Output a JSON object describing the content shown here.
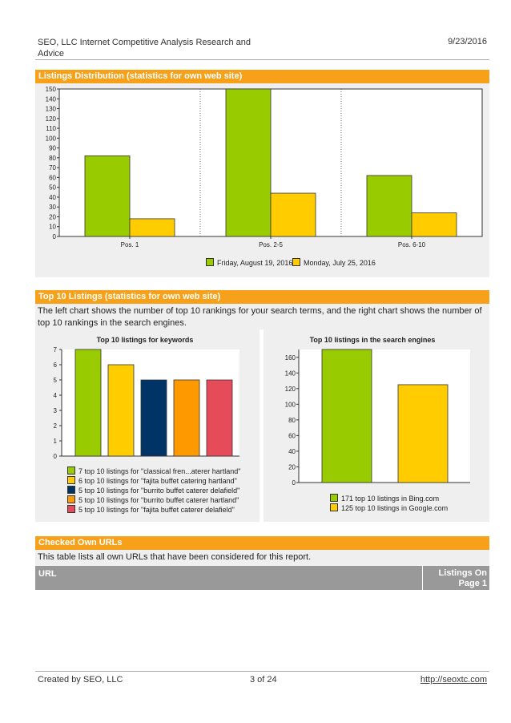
{
  "header": {
    "title": "SEO, LLC Internet Competitive Analysis Research and Advice",
    "date": "9/23/2016"
  },
  "section1": {
    "title": "Listings Distribution (statistics for own web site)"
  },
  "section2": {
    "title": "Top 10 Listings (statistics for own web site)",
    "description": "The left chart shows the number of top 10 rankings for your search terms, and the right chart shows the number of top 10 rankings in the search engines."
  },
  "section3": {
    "title": "Checked Own URLs",
    "description": "This table lists all own URLs that have been considered for this report.",
    "columns": [
      "URL",
      "Listings On Page 1"
    ]
  },
  "footer": {
    "created_by": "Created by SEO, LLC",
    "page": "3 of 24",
    "link": "http://seoxtc.com"
  },
  "colors": {
    "accent": "#f7a11a",
    "green": "#99cc00",
    "yellow": "#ffcc00",
    "navy": "#003366",
    "orange": "#ff9900",
    "red": "#e64b5a"
  },
  "chart_data": [
    {
      "type": "bar",
      "title": "",
      "categories": [
        "Pos. 1",
        "Pos. 2-5",
        "Pos. 6-10"
      ],
      "series": [
        {
          "name": "Friday, August 19, 2016",
          "values": [
            82,
            150,
            62
          ],
          "color": "#99cc00"
        },
        {
          "name": "Monday, July 25, 2016",
          "values": [
            18,
            44,
            24
          ],
          "color": "#ffcc00"
        }
      ],
      "ylim": [
        0,
        150
      ],
      "yticks": [
        0,
        10,
        20,
        30,
        40,
        50,
        60,
        70,
        80,
        90,
        100,
        110,
        120,
        130,
        140,
        150
      ]
    },
    {
      "type": "bar",
      "title": "Top 10 listings for keywords",
      "values": [
        7,
        6,
        5,
        5,
        5
      ],
      "colors": [
        "#99cc00",
        "#ffcc00",
        "#003366",
        "#ff9900",
        "#e64b5a"
      ],
      "legend": [
        "7 top 10 listings for \"classical fren...aterer hartland\"",
        "6 top 10 listings for \"fajita buffet catering hartland\"",
        "5 top 10 listings for \"burrito buffet caterer delafield\"",
        "5 top 10 listings for \"burrito buffet caterer hartland\"",
        "5 top 10 listings for \"fajita buffet caterer delafield\""
      ],
      "ylim": [
        0,
        7
      ],
      "yticks": [
        0,
        1,
        2,
        3,
        4,
        5,
        6,
        7
      ]
    },
    {
      "type": "bar",
      "title": "Top 10 listings in the search engines",
      "values": [
        171,
        125
      ],
      "colors": [
        "#99cc00",
        "#ffcc00"
      ],
      "legend": [
        "171 top 10 listings in Bing.com",
        "125 top 10 listings in Google.com"
      ],
      "ylim": [
        0,
        170
      ],
      "yticks": [
        0,
        20,
        40,
        60,
        80,
        100,
        120,
        140,
        160
      ]
    }
  ]
}
